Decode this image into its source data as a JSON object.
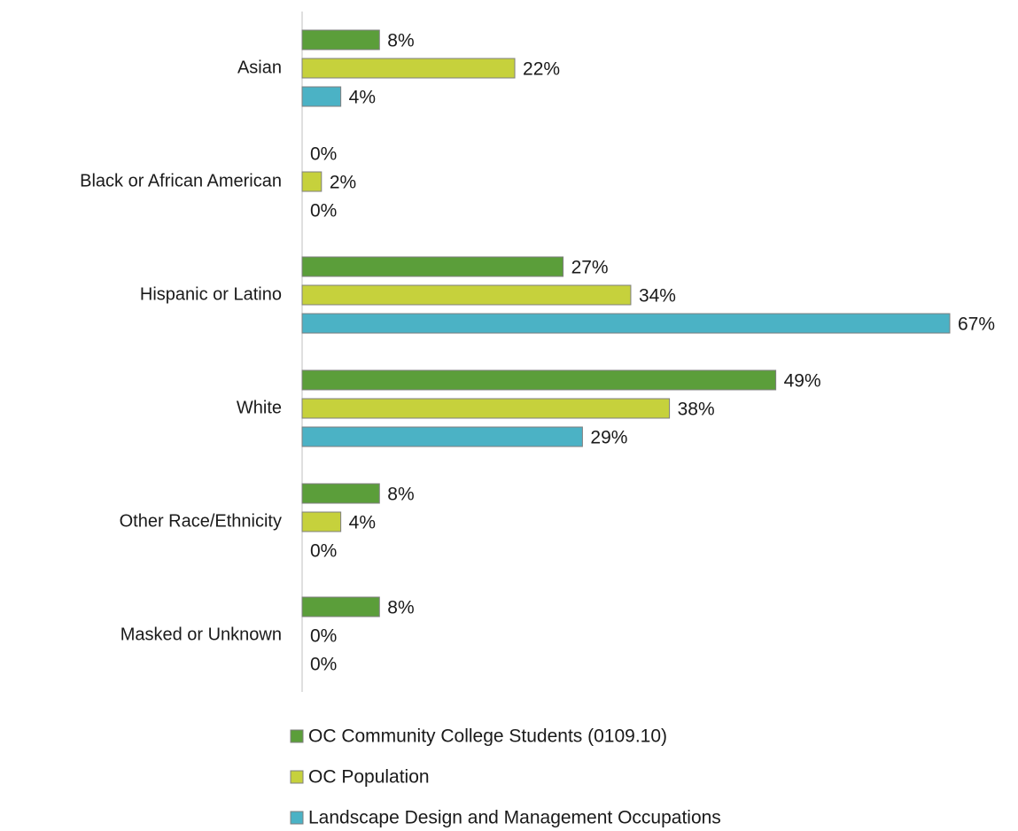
{
  "chart_data": {
    "type": "bar",
    "orientation": "horizontal",
    "categories": [
      "Asian",
      "Black or African American",
      "Hispanic or Latino",
      "White",
      "Other Race/Ethnicity",
      "Masked or Unknown"
    ],
    "series": [
      {
        "name": "OC Community College Students (0109.10)",
        "color": "#5b9e3a",
        "values": [
          8,
          0,
          27,
          49,
          8,
          8
        ],
        "value_labels": [
          "8%",
          "0%",
          "27%",
          "49%",
          "8%",
          "8%"
        ]
      },
      {
        "name": "OC Population",
        "color": "#c6d13c",
        "values": [
          22,
          2,
          34,
          38,
          4,
          0
        ],
        "value_labels": [
          "22%",
          "2%",
          "34%",
          "38%",
          "4%",
          "0%"
        ]
      },
      {
        "name": "Landscape Design and Management Occupations",
        "color": "#4bb2c5",
        "values": [
          4,
          0,
          67,
          29,
          0,
          0
        ],
        "value_labels": [
          "4%",
          "0%",
          "67%",
          "29%",
          "0%",
          "0%"
        ]
      }
    ],
    "legend": "bottom"
  }
}
